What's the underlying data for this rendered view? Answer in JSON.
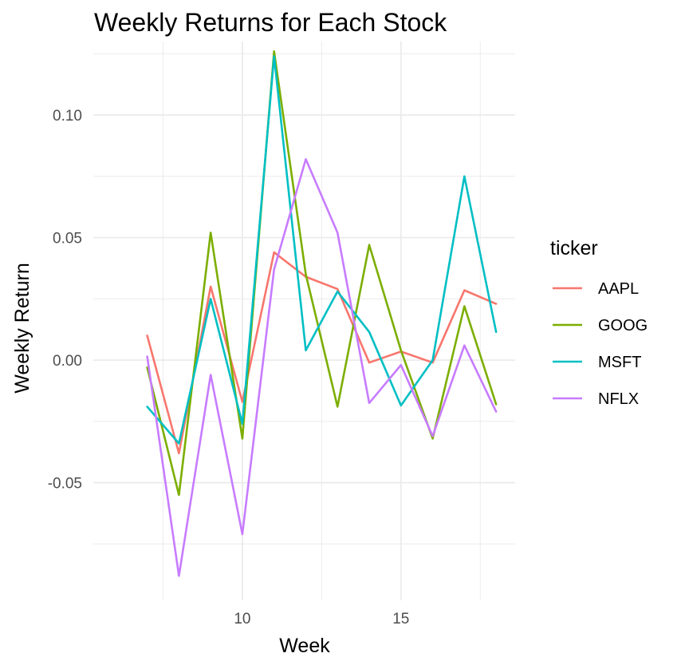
{
  "chart_data": {
    "type": "line",
    "title": "Weekly Returns for Each Stock",
    "xlabel": "Week",
    "ylabel": "Weekly Return",
    "x": [
      7,
      8,
      9,
      10,
      11,
      12,
      13,
      14,
      15,
      16,
      17,
      18
    ],
    "xlim": [
      5.3,
      18.6
    ],
    "ylim": [
      -0.098,
      0.13
    ],
    "x_ticks": [
      10,
      15
    ],
    "x_tick_labels": [
      "10",
      "15"
    ],
    "y_ticks": [
      -0.05,
      0.0,
      0.05,
      0.1
    ],
    "y_tick_labels": [
      "-0.05",
      "0.00",
      "0.05",
      "0.10"
    ],
    "grid": true,
    "legend_title": "ticker",
    "legend_position": "right",
    "series": [
      {
        "name": "AAPL",
        "color": "#F8766D",
        "values": [
          0.01,
          -0.038,
          0.03,
          -0.017,
          0.044,
          0.034,
          0.029,
          -0.001,
          0.0035,
          -0.001,
          0.0285,
          0.023
        ]
      },
      {
        "name": "GOOG",
        "color": "#7CAE00",
        "values": [
          -0.003,
          -0.055,
          0.052,
          -0.032,
          0.126,
          0.035,
          -0.019,
          0.047,
          0.004,
          -0.032,
          0.022,
          -0.018
        ]
      },
      {
        "name": "MSFT",
        "color": "#00BFC4",
        "values": [
          -0.019,
          -0.034,
          0.025,
          -0.026,
          0.124,
          0.004,
          0.028,
          0.0115,
          -0.0185,
          0.0,
          0.075,
          0.0115
        ]
      },
      {
        "name": "NFLX",
        "color": "#C77CFF",
        "values": [
          0.0015,
          -0.088,
          -0.006,
          -0.071,
          0.037,
          0.082,
          0.052,
          -0.0175,
          -0.002,
          -0.031,
          0.006,
          -0.021
        ]
      }
    ]
  }
}
